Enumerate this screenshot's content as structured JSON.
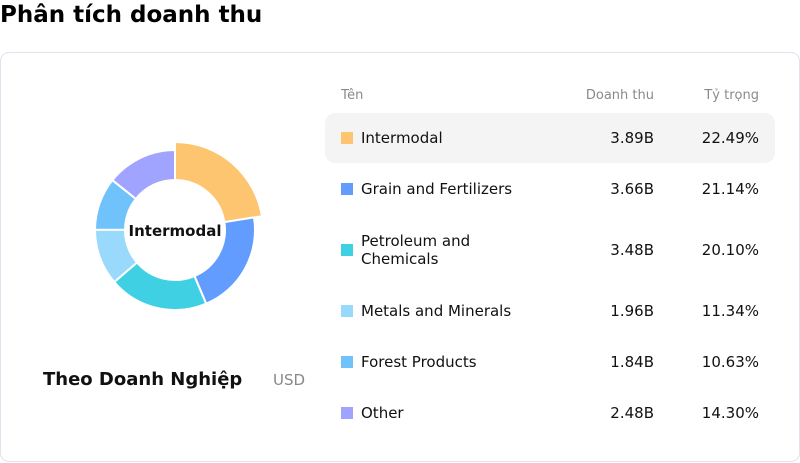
{
  "title": "Phân tích doanh thu",
  "subtitle": "Theo Doanh Nghiệp",
  "unit": "USD",
  "center_label": "Intermodal",
  "headers": {
    "name": "Tên",
    "revenue": "Doanh thu",
    "share": "Tỷ trọng"
  },
  "rows": [
    {
      "name": "Intermodal",
      "revenue": "3.89B",
      "share": "22.49%",
      "pct": 22.49,
      "color": "#fdc570",
      "active": true
    },
    {
      "name": "Grain and Fertilizers",
      "revenue": "3.66B",
      "share": "21.14%",
      "pct": 21.14,
      "color": "#629cff"
    },
    {
      "name": "Petroleum and Chemicals",
      "revenue": "3.48B",
      "share": "20.10%",
      "pct": 20.1,
      "color": "#40d0e4"
    },
    {
      "name": "Metals and Minerals",
      "revenue": "1.96B",
      "share": "11.34%",
      "pct": 11.34,
      "color": "#99dafc"
    },
    {
      "name": "Forest Products",
      "revenue": "1.84B",
      "share": "10.63%",
      "pct": 10.63,
      "color": "#70c2fb"
    },
    {
      "name": "Other",
      "revenue": "2.48B",
      "share": "14.30%",
      "pct": 14.3,
      "color": "#a0a4fe"
    }
  ]
}
